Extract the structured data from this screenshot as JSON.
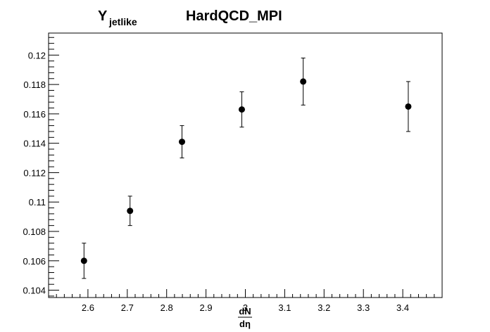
{
  "chart_data": {
    "type": "scatter",
    "title_main": "Y",
    "title_sub": "jetlike",
    "title_right": "HardQCD_MPI",
    "xlabel_num": "dN",
    "xlabel_den": "dη",
    "xlim": [
      2.5,
      3.5
    ],
    "ylim": [
      0.1035,
      0.1215
    ],
    "x_ticks": [
      2.6,
      2.7,
      2.8,
      2.9,
      3.0,
      3.1,
      3.2,
      3.3,
      3.4
    ],
    "x_tick_labels": [
      "2.6",
      "2.7",
      "2.8",
      "2.9",
      "3",
      "3.1",
      "3.2",
      "3.3",
      "3.4"
    ],
    "y_ticks": [
      0.104,
      0.106,
      0.108,
      0.11,
      0.112,
      0.114,
      0.116,
      0.118,
      0.12
    ],
    "y_tick_labels": [
      "0.104",
      "0.106",
      "0.108",
      "0.11",
      "0.112",
      "0.114",
      "0.116",
      "0.118",
      "0.12"
    ],
    "grid": false,
    "series": [
      {
        "x": [
          2.59,
          2.707,
          2.839,
          2.991,
          3.147,
          3.414
        ],
        "y": [
          0.106,
          0.1094,
          0.1141,
          0.1163,
          0.1182,
          0.1165
        ],
        "yerr": [
          0.0012,
          0.001,
          0.0011,
          0.0012,
          0.0016,
          0.0017
        ]
      }
    ]
  }
}
